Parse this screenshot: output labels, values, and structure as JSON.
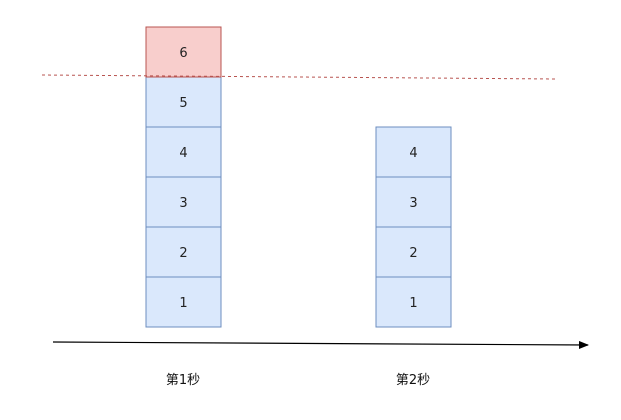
{
  "colors": {
    "normal_fill": "#dae8fc",
    "normal_stroke": "#6c8ebf",
    "overflow_fill": "#f8cecc",
    "overflow_stroke": "#b85450",
    "limit_line": "#b85450",
    "axis": "#000000"
  },
  "columns": [
    {
      "label": "第1秒",
      "items": [
        {
          "text": "1",
          "state": "normal"
        },
        {
          "text": "2",
          "state": "normal"
        },
        {
          "text": "3",
          "state": "normal"
        },
        {
          "text": "4",
          "state": "normal"
        },
        {
          "text": "5",
          "state": "normal"
        },
        {
          "text": "6",
          "state": "overflow"
        }
      ]
    },
    {
      "label": "第2秒",
      "items": [
        {
          "text": "1",
          "state": "normal"
        },
        {
          "text": "2",
          "state": "normal"
        },
        {
          "text": "3",
          "state": "normal"
        },
        {
          "text": "4",
          "state": "normal"
        }
      ]
    }
  ]
}
